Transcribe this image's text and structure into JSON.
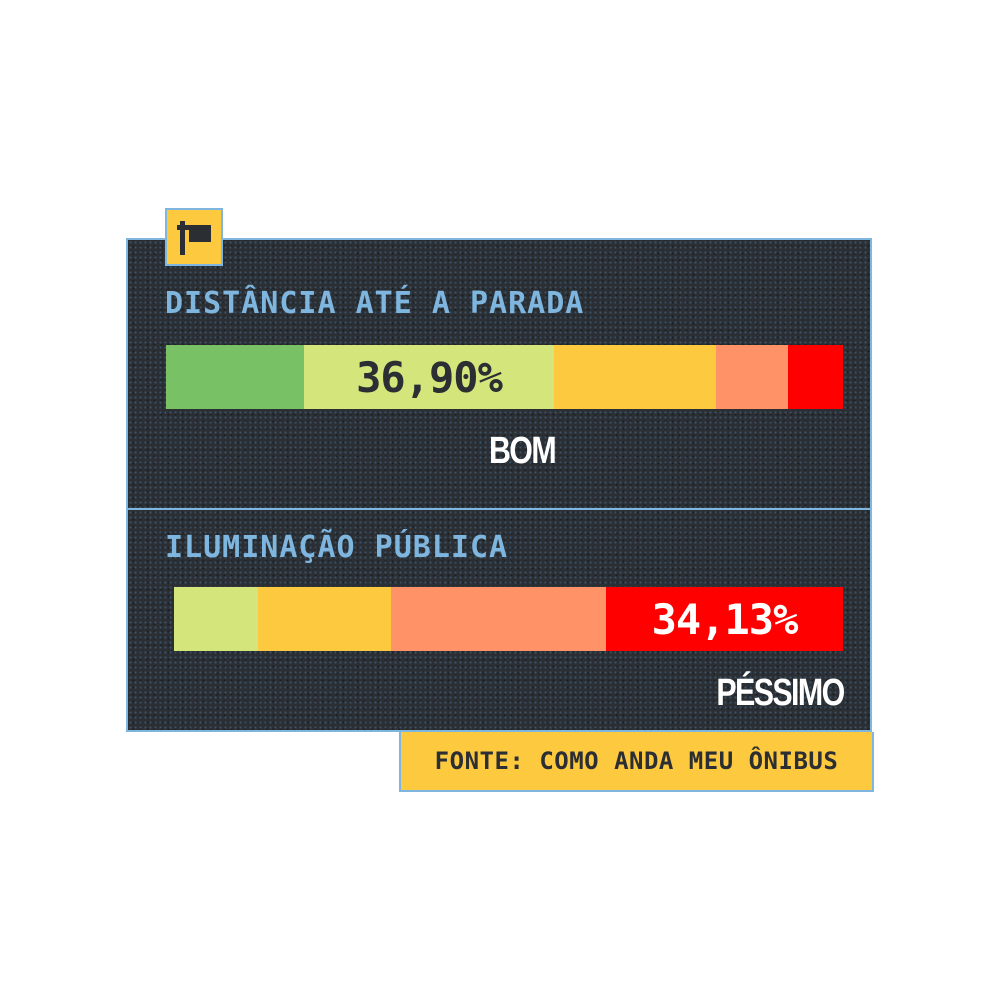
{
  "chart_data": [
    {
      "type": "bar",
      "title": "DISTÂNCIA ATÉ A PARADA",
      "segments": [
        {
          "color": "#78c265",
          "value": null,
          "label": ""
        },
        {
          "color": "#d4e57c",
          "value": 36.9,
          "label": "36,90%"
        },
        {
          "color": "#fdc93f",
          "value": null,
          "label": ""
        },
        {
          "color": "#ff9266",
          "value": null,
          "label": ""
        },
        {
          "color": "#ff0000",
          "value": null,
          "label": ""
        }
      ],
      "highlight": {
        "value_label": "36,90%",
        "category": "BOM",
        "segment_index": 1
      }
    },
    {
      "type": "bar",
      "title": "ILUMINAÇÃO PÚBLICA",
      "segments": [
        {
          "color": "#d4e57c",
          "value": null,
          "label": ""
        },
        {
          "color": "#fdc93f",
          "value": null,
          "label": ""
        },
        {
          "color": "#ff9266",
          "value": null,
          "label": ""
        },
        {
          "color": "#ff0000",
          "value": 34.13,
          "label": "34,13%"
        }
      ],
      "highlight": {
        "value_label": "34,13%",
        "category": "PÉSSIMO",
        "segment_index": 3
      }
    }
  ],
  "source": "FONTE: COMO ANDA MEU ÔNIBUS",
  "icon": "bus-stop-sign-icon",
  "colors": {
    "background": "#2b2f33",
    "accent": "#7fb6df",
    "yellow": "#fdc93f"
  }
}
